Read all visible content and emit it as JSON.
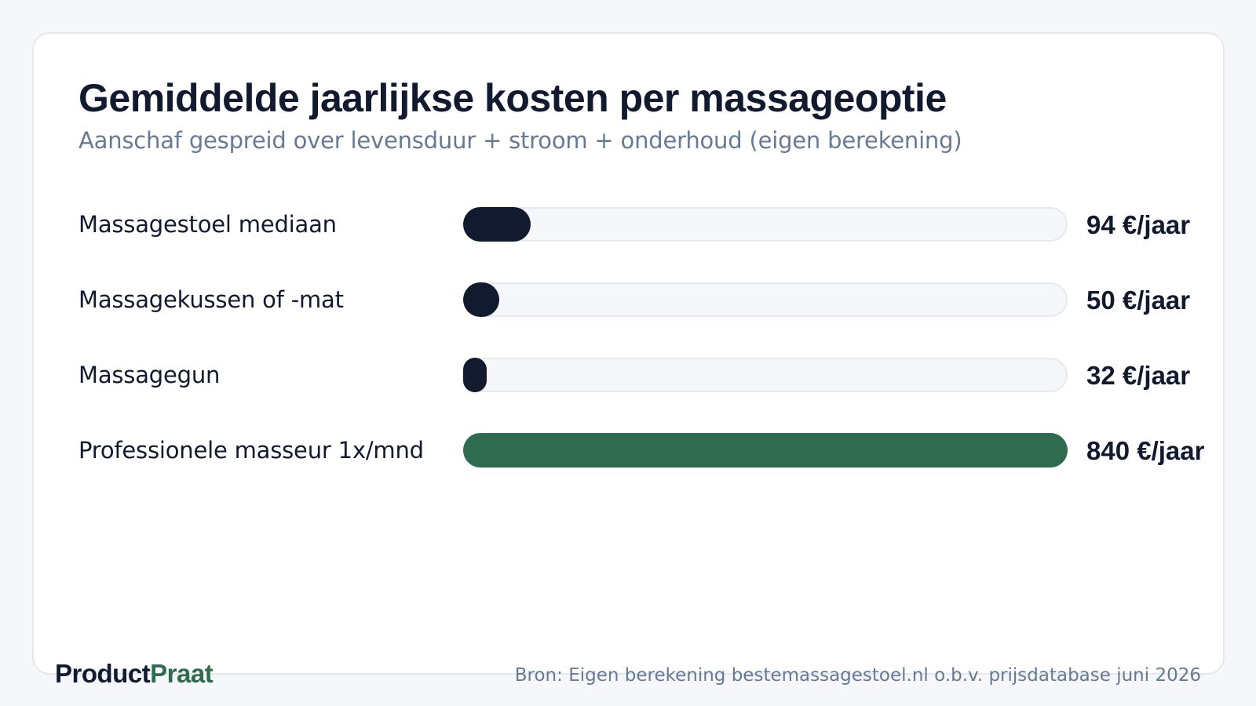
{
  "colors": {
    "dark": "#111a2e",
    "accent": "#2e6b4f",
    "muted": "#677a93"
  },
  "chart_data": {
    "type": "bar",
    "orientation": "horizontal",
    "title": "Gemiddelde jaarlijkse kosten per massageoptie",
    "subtitle": "Aanschaf gespreid over levensduur + stroom + onderhoud (eigen berekening)",
    "categories": [
      "Massagestoel mediaan",
      "Massagekussen of -mat",
      "Massagegun",
      "Professionele masseur 1x/mnd"
    ],
    "values": [
      94,
      50,
      32,
      840
    ],
    "value_labels": [
      "94 €/jaar",
      "50 €/jaar",
      "32 €/jaar",
      "840 €/jaar"
    ],
    "highlight_index": 3,
    "xlim": [
      0,
      840
    ],
    "grid": false
  },
  "footer": {
    "brand_part1": "Product",
    "brand_part2": "Praat",
    "source": "Bron: Eigen berekening bestemassagestoel.nl o.b.v. prijsdatabase juni 2026"
  }
}
